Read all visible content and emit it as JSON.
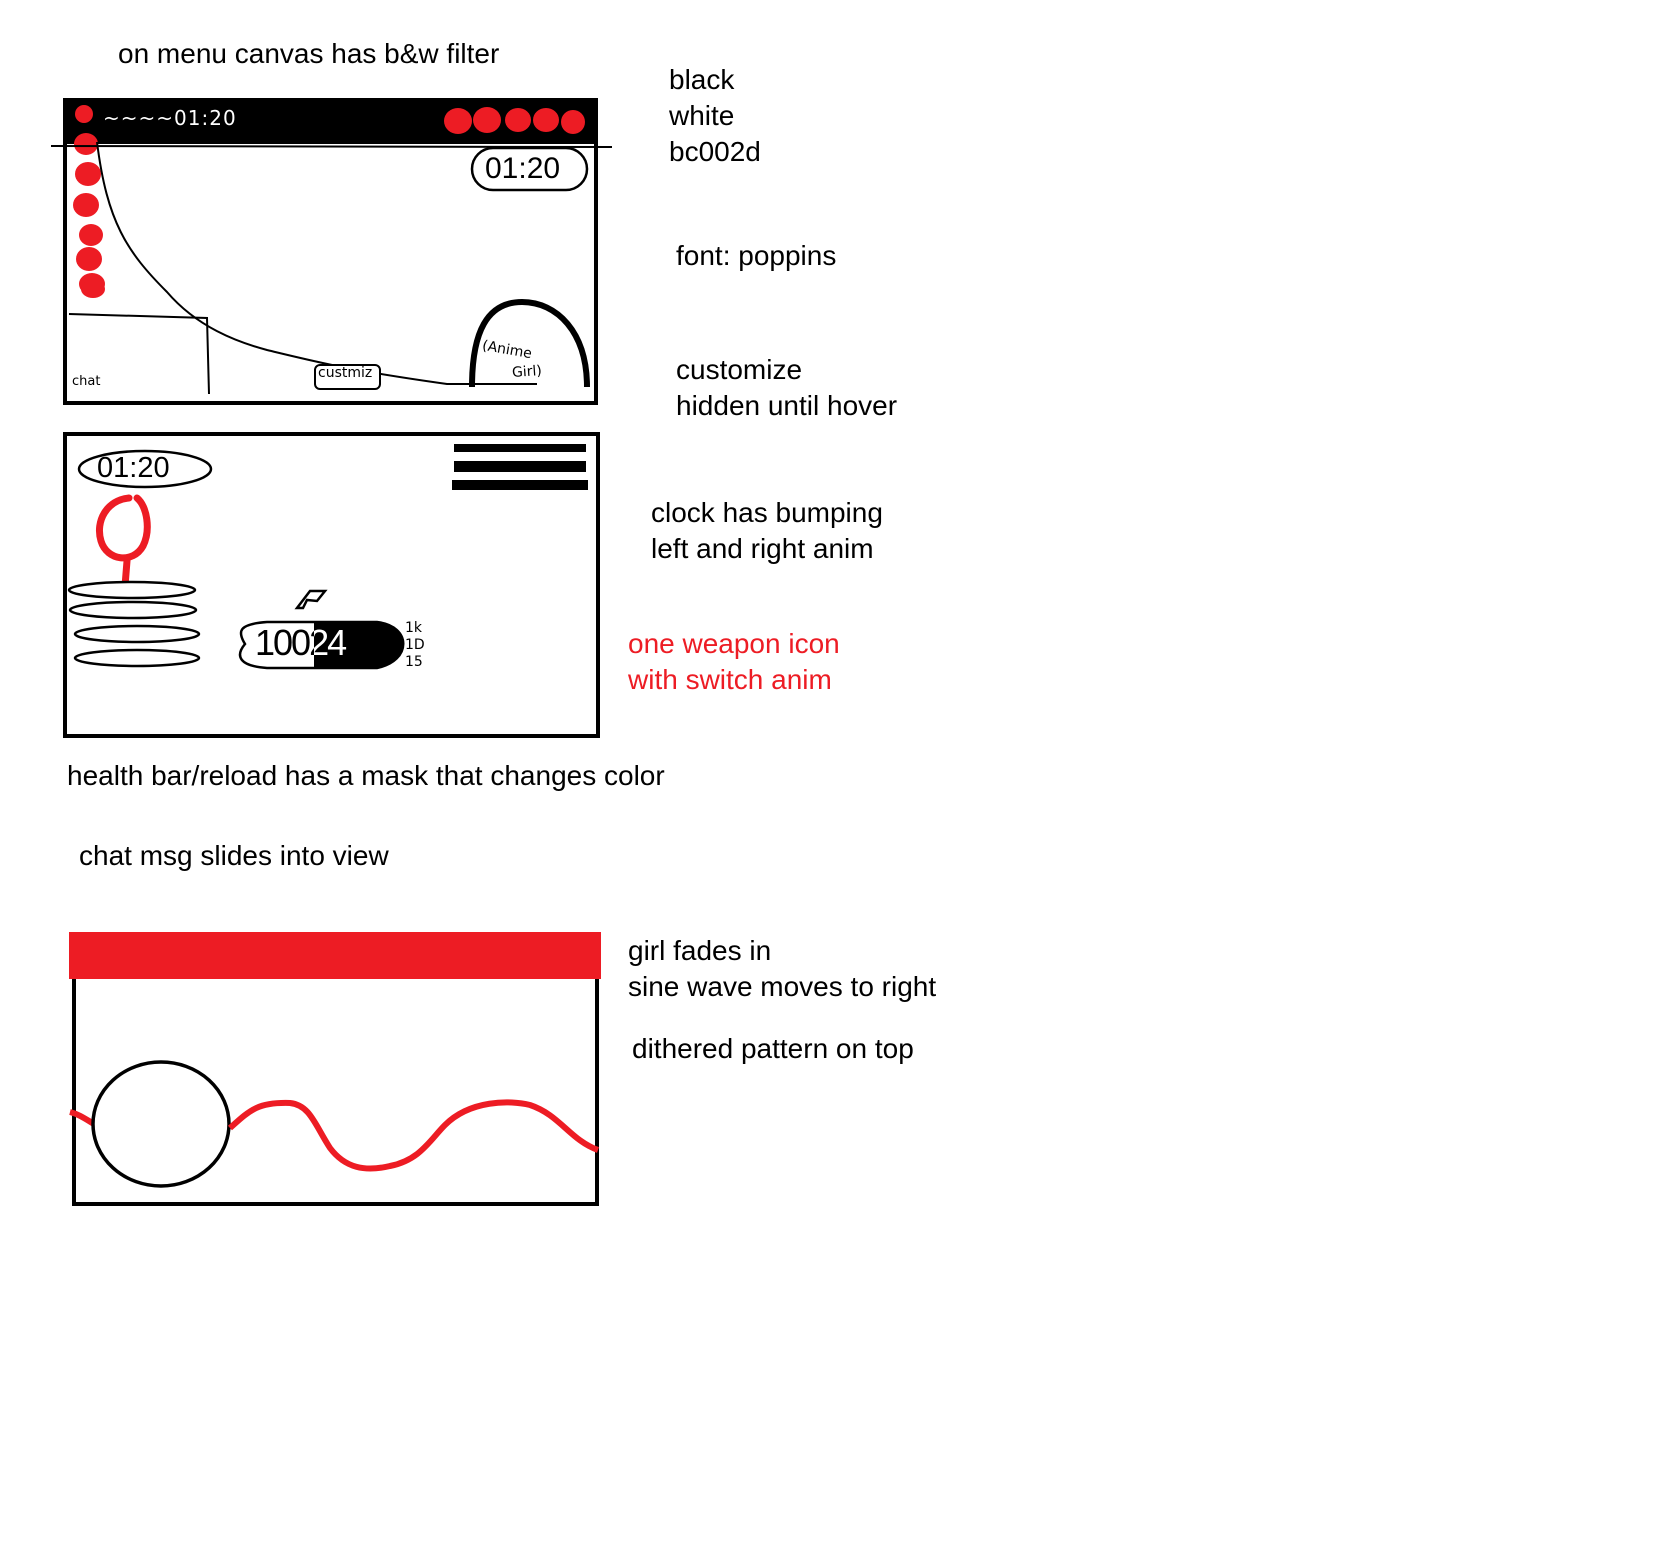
{
  "notes": {
    "menu_filter": "on menu canvas has b&w filter",
    "palette": [
      "black",
      "white",
      "bc002d"
    ],
    "font": "font: poppins",
    "customize_1": "customize",
    "customize_2": "hidden until hover",
    "clock_1": "clock has bumping",
    "clock_2": "left and right anim",
    "weapon_1": "one weapon icon",
    "weapon_2": "with switch anim",
    "health": "health bar/reload has a mask that changes color",
    "chat": "chat msg slides into view",
    "girl_1": "girl fades in",
    "girl_2": "sine wave moves to right",
    "dither": "dithered pattern on top"
  },
  "sketch_menu": {
    "timer": "01:20",
    "topbar_scribble": "~~~~01:20",
    "customize_label": "custmiz",
    "chat_label": "chat",
    "anime_label_1": "(Anime",
    "anime_label_2": "Girl)"
  },
  "sketch_game": {
    "timer": "01:20",
    "ammo": "10024",
    "stats": [
      "1k",
      "1D",
      "15"
    ]
  },
  "colors": {
    "black": "#000000",
    "white": "#ffffff",
    "accent": "#ed1c24"
  }
}
